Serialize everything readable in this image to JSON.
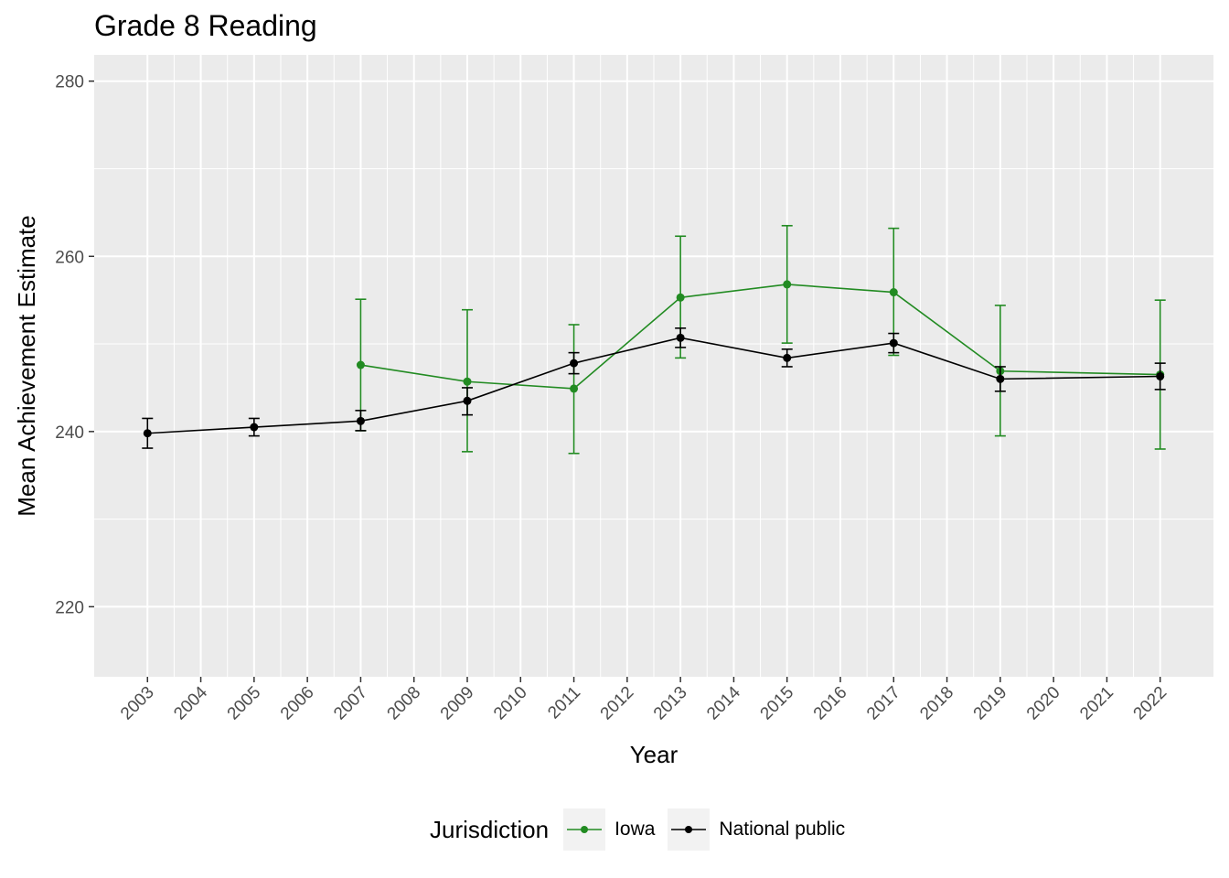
{
  "chart_data": {
    "type": "line",
    "title": "Grade 8 Reading",
    "xlabel": "Year",
    "ylabel": "Mean Achievement Estimate",
    "ylim": [
      212,
      283
    ],
    "y_ticks": [
      220,
      240,
      260,
      280
    ],
    "x_ticks": [
      2003,
      2004,
      2005,
      2006,
      2007,
      2008,
      2009,
      2010,
      2011,
      2012,
      2013,
      2014,
      2015,
      2016,
      2017,
      2018,
      2019,
      2020,
      2021,
      2022
    ],
    "xlim": [
      2002,
      2023
    ],
    "grid": true,
    "legend": {
      "title": "Jurisdiction",
      "position": "bottom"
    },
    "series": [
      {
        "name": "Iowa",
        "color": "#228b22",
        "x": [
          2007,
          2009,
          2011,
          2013,
          2015,
          2017,
          2019,
          2022
        ],
        "y": [
          247.6,
          245.7,
          244.9,
          255.3,
          256.8,
          255.9,
          246.9,
          246.5
        ],
        "lower": [
          240.1,
          237.7,
          237.5,
          248.4,
          250.1,
          248.7,
          239.5,
          238.0
        ],
        "upper": [
          255.1,
          253.9,
          252.2,
          262.3,
          263.5,
          263.2,
          254.4,
          255.0
        ]
      },
      {
        "name": "National public",
        "color": "#000000",
        "x": [
          2003,
          2005,
          2007,
          2009,
          2011,
          2013,
          2015,
          2017,
          2019,
          2022
        ],
        "y": [
          239.8,
          240.5,
          241.2,
          243.5,
          247.8,
          250.7,
          248.4,
          250.1,
          246.0,
          246.3
        ],
        "lower": [
          238.1,
          239.5,
          240.1,
          241.9,
          246.6,
          249.6,
          247.4,
          249.0,
          244.6,
          244.8
        ],
        "upper": [
          241.5,
          241.5,
          242.4,
          245.0,
          249.0,
          251.8,
          249.4,
          251.2,
          247.4,
          247.8
        ]
      }
    ]
  }
}
